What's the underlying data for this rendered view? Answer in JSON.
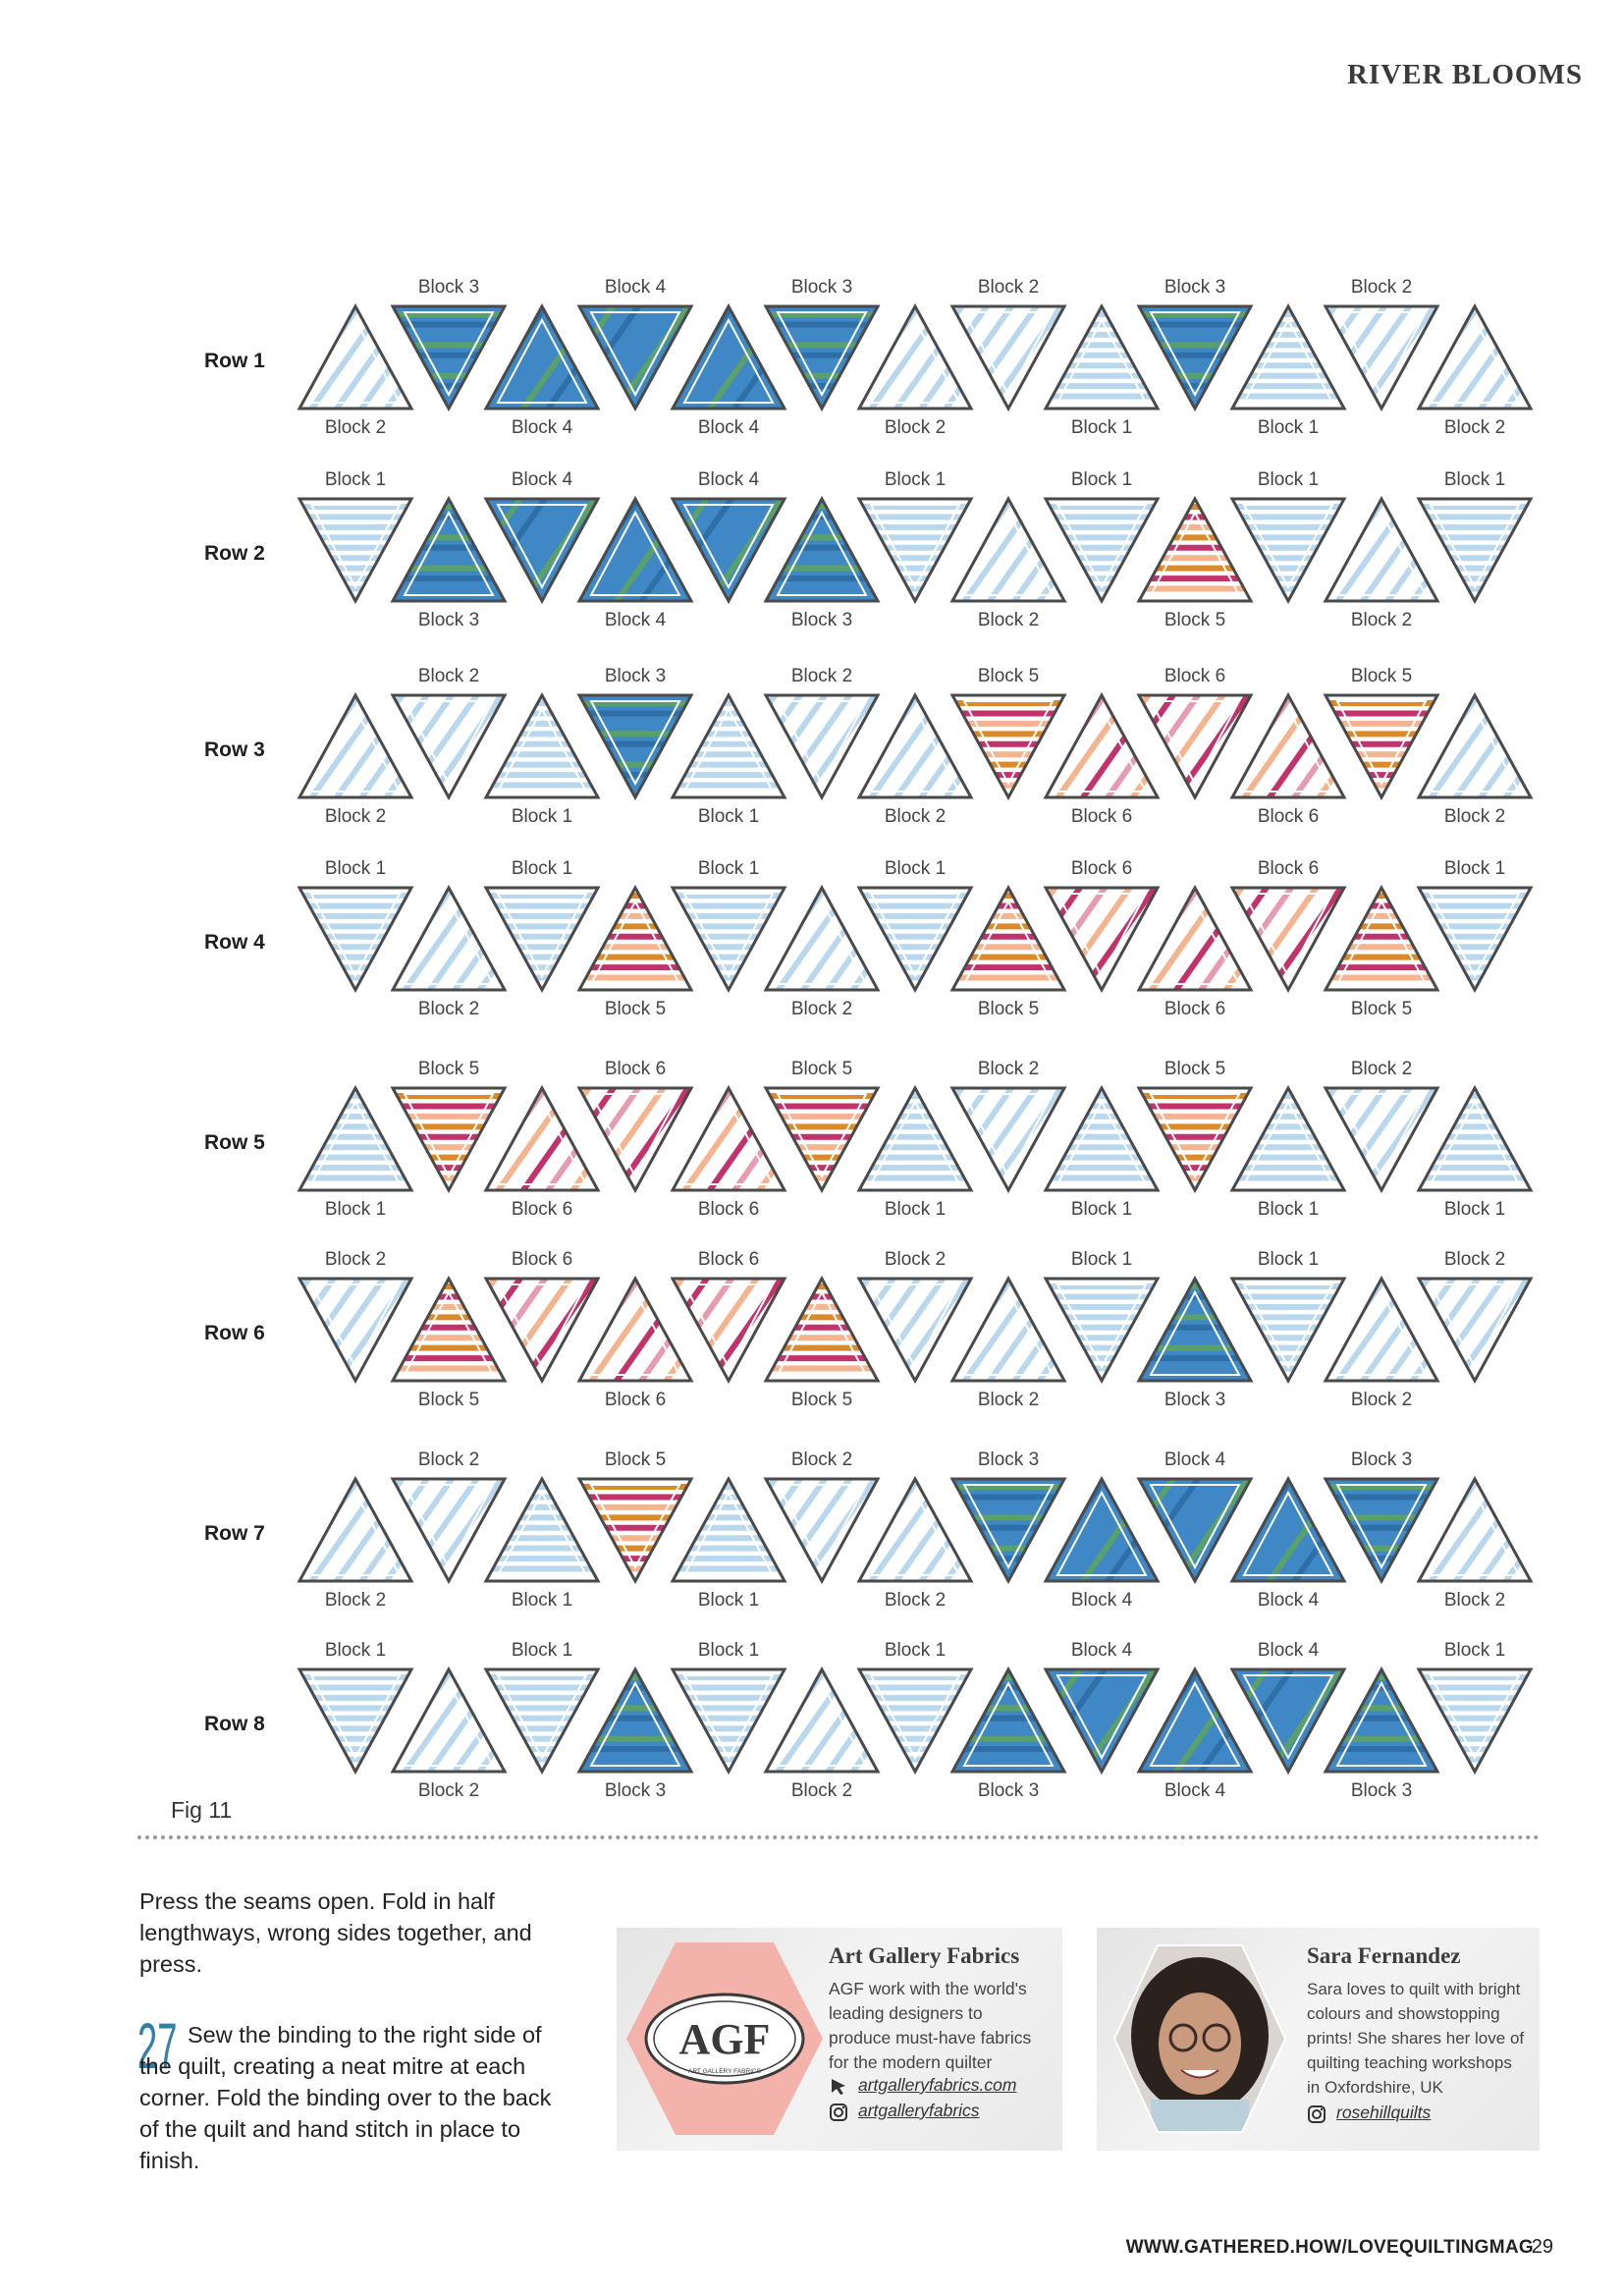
{
  "header": {
    "section_title": "RIVER BLOOMS"
  },
  "figure": {
    "caption": "Fig 11",
    "colors": {
      "outline": "#4a4a4a",
      "light_blue": "#b9d8ee",
      "mid_blue": "#3f88c5",
      "green": "#5aa06a",
      "orange": "#d98a2b",
      "magenta": "#c3326a",
      "pink": "#e79bb0",
      "peach": "#f3b48f",
      "label": "#444444"
    },
    "rows": [
      {
        "label": "Row 1",
        "top_labels": [
          "Block 3",
          "Block 4",
          "Block 3",
          "Block 2",
          "Block 3",
          "Block 2"
        ],
        "bottom_labels": [
          "Block 2",
          "Block 4",
          "Block 4",
          "Block 2",
          "Block 1",
          "Block 1",
          "Block 2"
        ]
      },
      {
        "label": "Row 2",
        "top_labels": [
          "Block 1",
          "Block 4",
          "Block 4",
          "Block 1",
          "Block 1",
          "Block 1",
          "Block 1"
        ],
        "bottom_labels": [
          "Block 3",
          "Block 4",
          "Block 3",
          "Block 2",
          "Block 5",
          "Block 2"
        ]
      },
      {
        "label": "Row 3",
        "top_labels": [
          "Block 2",
          "Block 3",
          "Block 2",
          "Block 5",
          "Block 6",
          "Block 5"
        ],
        "bottom_labels": [
          "Block 2",
          "Block 1",
          "Block 1",
          "Block 2",
          "Block 6",
          "Block 6",
          "Block 2"
        ]
      },
      {
        "label": "Row 4",
        "top_labels": [
          "Block 1",
          "Block 1",
          "Block 1",
          "Block 1",
          "Block 6",
          "Block 6",
          "Block 1"
        ],
        "bottom_labels": [
          "Block 2",
          "Block 5",
          "Block 2",
          "Block 5",
          "Block 6",
          "Block 5"
        ]
      },
      {
        "label": "Row 5",
        "top_labels": [
          "Block 5",
          "Block 6",
          "Block 5",
          "Block 2",
          "Block 5",
          "Block 2"
        ],
        "bottom_labels": [
          "Block 1",
          "Block 6",
          "Block 6",
          "Block 1",
          "Block 1",
          "Block 1",
          "Block 1"
        ]
      },
      {
        "label": "Row 6",
        "top_labels": [
          "Block 2",
          "Block 6",
          "Block 6",
          "Block 2",
          "Block 1",
          "Block 1",
          "Block 2"
        ],
        "bottom_labels": [
          "Block 5",
          "Block 6",
          "Block 5",
          "Block 2",
          "Block 3",
          "Block 2"
        ]
      },
      {
        "label": "Row 7",
        "top_labels": [
          "Block 2",
          "Block 5",
          "Block 2",
          "Block 3",
          "Block 4",
          "Block 3"
        ],
        "bottom_labels": [
          "Block 2",
          "Block 1",
          "Block 1",
          "Block 2",
          "Block 4",
          "Block 4",
          "Block 2"
        ]
      },
      {
        "label": "Row 8",
        "top_labels": [
          "Block 1",
          "Block 1",
          "Block 1",
          "Block 1",
          "Block 4",
          "Block 4",
          "Block 1"
        ],
        "bottom_labels": [
          "Block 2",
          "Block 3",
          "Block 2",
          "Block 3",
          "Block 4",
          "Block 3"
        ]
      }
    ]
  },
  "instructions": {
    "paragraph_1": "Press the seams open. Fold in half lengthways, wrong sides together, and press.",
    "step_number": "27",
    "step_text": "Sew the binding to the right side of the quilt, creating a neat mitre at each corner. Fold the binding over to the back of the quilt and hand stitch in place to finish."
  },
  "cards": {
    "agf": {
      "title": "Art Gallery Fabrics",
      "logo_text": "AGF",
      "logo_subtext": "ART GALLERY FABRICS",
      "description_lines": [
        "AGF work with the world's",
        "leading designers to",
        "produce must-have fabrics",
        "for the modern quilter"
      ],
      "website": "artgalleryfabrics.com",
      "instagram": "artgalleryfabrics",
      "website_icon": "cursor-icon",
      "instagram_icon": "instagram-icon"
    },
    "designer": {
      "title": "Sara Fernandez",
      "description_lines": [
        "Sara loves to quilt with bright",
        "colours and showstopping",
        "prints! She shares her love of",
        "quilting teaching workshops",
        "in Oxfordshire, UK"
      ],
      "instagram": "rosehillquilts",
      "instagram_icon": "instagram-icon"
    }
  },
  "footer": {
    "url": "WWW.GATHERED.HOW/LOVEQUILTINGMAG",
    "page_number": "29"
  }
}
